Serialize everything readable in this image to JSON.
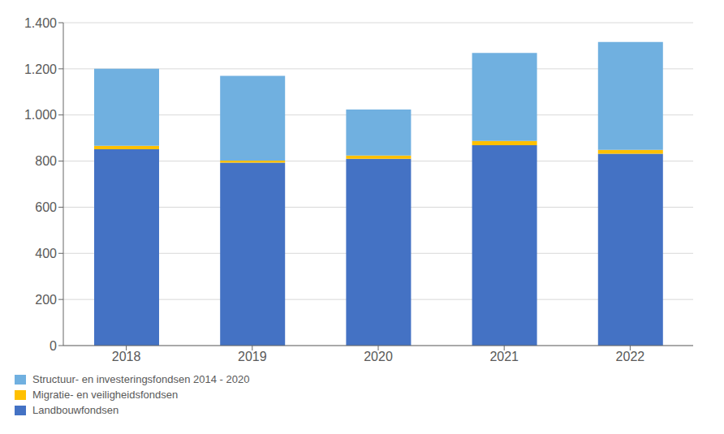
{
  "chart_data": {
    "type": "bar",
    "stacked": true,
    "categories": [
      "2018",
      "2019",
      "2020",
      "2021",
      "2022"
    ],
    "series": [
      {
        "name": "Landbouwfondsen",
        "color": "#4472C4",
        "values": [
          851,
          793,
          810,
          869,
          832
        ]
      },
      {
        "name": "Migratie- en veiligheidsfondsen",
        "color": "#FFC000",
        "values": [
          15,
          9,
          14,
          18,
          16.4
        ]
      },
      {
        "name": "Structuur- en investeringsfondsen 2014 - 2020",
        "color": "#70B0E0",
        "values": [
          334,
          368,
          200,
          382,
          468.3
        ]
      }
    ],
    "ylim": [
      0,
      1400
    ],
    "yticks": [
      0,
      200,
      400,
      600,
      800,
      {
        "value": 1000,
        "label": "1.000"
      },
      {
        "value": 1200,
        "label": "1.200"
      },
      {
        "value": 1400,
        "label": "1.400"
      }
    ],
    "grid": true,
    "legend": "bottom"
  }
}
